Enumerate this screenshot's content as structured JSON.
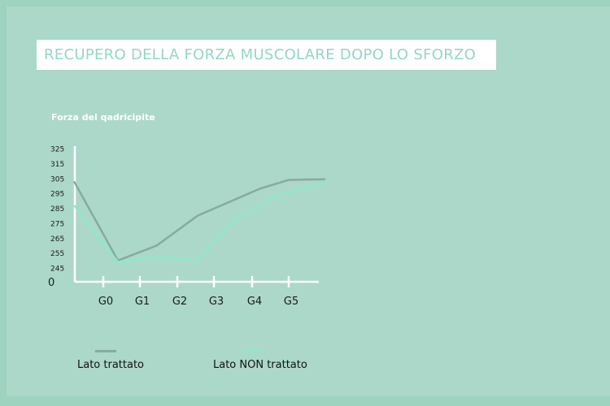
{
  "title": "RECUPERO DELLA FORZA MUSCOLARE DOPO LO SFORZO",
  "chart_data": {
    "type": "line",
    "ylabel": "Forza del qadricipite",
    "yticks": [
      325,
      315,
      305,
      295,
      285,
      275,
      265,
      255,
      245
    ],
    "zero_label": "0",
    "categories": [
      "G0",
      "G1",
      "G2",
      "G3",
      "G4",
      "G5"
    ],
    "series": [
      {
        "name": "Lato trattato",
        "color": "#87ab9b",
        "points": [
          [
            -0.8,
            303
          ],
          [
            0.4,
            250
          ],
          [
            1.45,
            260
          ],
          [
            2.55,
            280
          ],
          [
            4.2,
            298
          ],
          [
            5.0,
            304
          ],
          [
            6.0,
            304.5
          ]
        ]
      },
      {
        "name": "Lato NON trattato",
        "color": "#8ee8cb",
        "points": [
          [
            -0.8,
            287
          ],
          [
            0.4,
            249
          ],
          [
            1.45,
            253
          ],
          [
            2.55,
            250
          ],
          [
            3.55,
            277
          ],
          [
            4.6,
            293
          ],
          [
            6.0,
            302
          ]
        ]
      }
    ]
  }
}
